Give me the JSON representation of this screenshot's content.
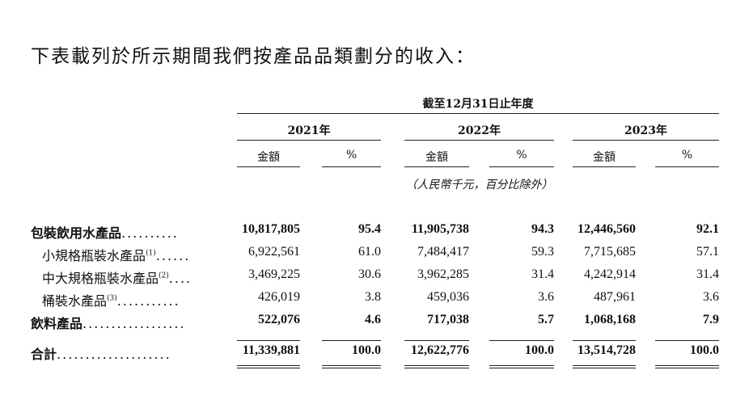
{
  "intro": "下表載列於所示期間我們按產品品類劃分的收入：",
  "header": {
    "period": "截至12月31日止年度",
    "years": [
      "2021年",
      "2022年",
      "2023年"
    ],
    "amount": "金額",
    "pct": "%",
    "unit_note": "（人民幣千元，百分比除外）"
  },
  "rows": [
    {
      "label": "包裝飲用水產品",
      "note": "",
      "dots": "..........",
      "bold": true,
      "v": [
        "10,817,805",
        "95.4",
        "11,905,738",
        "94.3",
        "12,446,560",
        "92.1"
      ]
    },
    {
      "label": "小規格瓶裝水產品",
      "note": "(1)",
      "dots": "......",
      "bold": false,
      "v": [
        "6,922,561",
        "61.0",
        "7,484,417",
        "59.3",
        "7,715,685",
        "57.1"
      ]
    },
    {
      "label": "中大規格瓶裝水產品",
      "note": "(2)",
      "dots": "....",
      "bold": false,
      "v": [
        "3,469,225",
        "30.6",
        "3,962,285",
        "31.4",
        "4,242,914",
        "31.4"
      ]
    },
    {
      "label": "桶裝水產品",
      "note": "(3)",
      "dots": "...........",
      "bold": false,
      "v": [
        "426,019",
        "3.8",
        "459,036",
        "3.6",
        "487,961",
        "3.6"
      ]
    },
    {
      "label": "飲料產品",
      "note": "",
      "dots": "..................",
      "bold": true,
      "v": [
        "522,076",
        "4.6",
        "717,038",
        "5.7",
        "1,068,168",
        "7.9"
      ]
    },
    {
      "label": "合計",
      "note": "",
      "dots": "....................",
      "bold": true,
      "v": [
        "11,339,881",
        "100.0",
        "12,622,776",
        "100.0",
        "13,514,728",
        "100.0"
      ]
    }
  ]
}
